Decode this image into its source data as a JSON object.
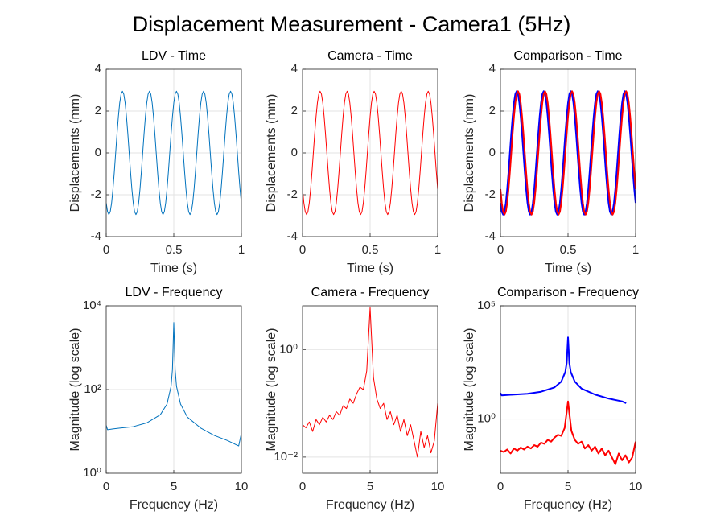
{
  "title": "Displacement Measurement - Camera1 (5Hz)",
  "chart_data": [
    {
      "type": "line",
      "title": "LDV - Time",
      "xlabel": "Time (s)",
      "ylabel": "Displacements (mm)",
      "xlim": [
        0,
        1
      ],
      "xticks": [
        0,
        0.5,
        1
      ],
      "ylim": [
        -4,
        4
      ],
      "yticks": [
        -4,
        -2,
        0,
        2,
        4
      ],
      "grid": true,
      "x": [
        0,
        0.01,
        0.02,
        0.03,
        0.04,
        0.05,
        0.06,
        0.07,
        0.08,
        0.09,
        0.1,
        0.11,
        0.12,
        0.13,
        0.14,
        0.15,
        0.16,
        0.17,
        0.18,
        0.19,
        0.2,
        0.21,
        0.22,
        0.23,
        0.24,
        0.25,
        0.26,
        0.27,
        0.28,
        0.29,
        0.3,
        0.31,
        0.32,
        0.33,
        0.34,
        0.35,
        0.36,
        0.37,
        0.38,
        0.39,
        0.4,
        0.41,
        0.42,
        0.43,
        0.44,
        0.45,
        0.46,
        0.47,
        0.48,
        0.49,
        0.5,
        0.51,
        0.52,
        0.53,
        0.54,
        0.55,
        0.56,
        0.57,
        0.58,
        0.59,
        0.6,
        0.61,
        0.62,
        0.63,
        0.64,
        0.65,
        0.66,
        0.67,
        0.68,
        0.69,
        0.7,
        0.71,
        0.72,
        0.73,
        0.74,
        0.75,
        0.76,
        0.77,
        0.78,
        0.79,
        0.8,
        0.81,
        0.82,
        0.83,
        0.84,
        0.85,
        0.86,
        0.87,
        0.88,
        0.89,
        0.9,
        0.91,
        0.92,
        0.93,
        0.94,
        0.95,
        0.96,
        0.97,
        0.98,
        0.99,
        1
      ],
      "series": [
        {
          "color": "#0072bd",
          "line_width": 1,
          "values": [
            -2.39,
            -2.81,
            -2.95,
            -2.81,
            -2.39,
            -1.73,
            -0.91,
            0,
            0.91,
            1.73,
            2.39,
            2.81,
            2.95,
            2.81,
            2.39,
            1.73,
            0.91,
            0,
            -0.91,
            -1.73,
            -2.39,
            -2.81,
            -2.95,
            -2.81,
            -2.39,
            -1.73,
            -0.91,
            0,
            0.91,
            1.73,
            2.39,
            2.81,
            2.95,
            2.81,
            2.39,
            1.73,
            0.91,
            0,
            -0.91,
            -1.73,
            -2.39,
            -2.81,
            -2.95,
            -2.81,
            -2.39,
            -1.73,
            -0.91,
            0,
            0.91,
            1.73,
            2.39,
            2.81,
            2.95,
            2.81,
            2.39,
            1.73,
            0.91,
            0,
            -0.91,
            -1.73,
            -2.39,
            -2.81,
            -2.95,
            -2.81,
            -2.39,
            -1.73,
            -0.91,
            0,
            0.91,
            1.73,
            2.39,
            2.81,
            2.95,
            2.81,
            2.39,
            1.73,
            0.91,
            0,
            -0.91,
            -1.73,
            -2.39,
            -2.81,
            -2.95,
            -2.81,
            -2.39,
            -1.73,
            -0.91,
            0,
            0.91,
            1.73,
            2.39,
            2.81,
            2.95,
            2.81,
            2.39,
            1.73,
            0.91,
            0,
            -0.91,
            -1.73,
            -2.39
          ]
        }
      ]
    },
    {
      "type": "line",
      "title": "Camera - Time",
      "xlabel": "Time (s)",
      "ylabel": "Displacements (mm)",
      "xlim": [
        0,
        1
      ],
      "xticks": [
        0,
        0.5,
        1
      ],
      "ylim": [
        -4,
        4
      ],
      "yticks": [
        -4,
        -2,
        0,
        2,
        4
      ],
      "grid": true,
      "x": [
        0,
        0.01,
        0.02,
        0.03,
        0.04,
        0.05,
        0.06,
        0.07,
        0.08,
        0.09,
        0.1,
        0.11,
        0.12,
        0.13,
        0.14,
        0.15,
        0.16,
        0.17,
        0.18,
        0.19,
        0.2,
        0.21,
        0.22,
        0.23,
        0.24,
        0.25,
        0.26,
        0.27,
        0.28,
        0.29,
        0.3,
        0.31,
        0.32,
        0.33,
        0.34,
        0.35,
        0.36,
        0.37,
        0.38,
        0.39,
        0.4,
        0.41,
        0.42,
        0.43,
        0.44,
        0.45,
        0.46,
        0.47,
        0.48,
        0.49,
        0.5,
        0.51,
        0.52,
        0.53,
        0.54,
        0.55,
        0.56,
        0.57,
        0.58,
        0.59,
        0.6,
        0.61,
        0.62,
        0.63,
        0.64,
        0.65,
        0.66,
        0.67,
        0.68,
        0.69,
        0.7,
        0.71,
        0.72,
        0.73,
        0.74,
        0.75,
        0.76,
        0.77,
        0.78,
        0.79,
        0.8,
        0.81,
        0.82,
        0.83,
        0.84,
        0.85,
        0.86,
        0.87,
        0.88,
        0.89,
        0.9,
        0.91,
        0.92,
        0.93,
        0.94,
        0.95,
        0.96,
        0.97,
        0.98,
        0.99,
        1
      ],
      "series": [
        {
          "color": "#ff0000",
          "line_width": 1,
          "values": [
            -1.73,
            -2.39,
            -2.81,
            -2.95,
            -2.81,
            -2.39,
            -1.73,
            -0.91,
            0,
            0.91,
            1.73,
            2.39,
            2.81,
            2.95,
            2.81,
            2.39,
            1.73,
            0.91,
            0,
            -0.91,
            -1.73,
            -2.39,
            -2.81,
            -2.95,
            -2.81,
            -2.39,
            -1.73,
            -0.91,
            0,
            0.91,
            1.73,
            2.39,
            2.81,
            2.95,
            2.81,
            2.39,
            1.73,
            0.91,
            0,
            -0.91,
            -1.73,
            -2.39,
            -2.81,
            -2.95,
            -2.81,
            -2.39,
            -1.73,
            -0.91,
            0,
            0.91,
            1.73,
            2.39,
            2.81,
            2.95,
            2.81,
            2.39,
            1.73,
            0.91,
            0,
            -0.91,
            -1.73,
            -2.39,
            -2.81,
            -2.95,
            -2.81,
            -2.39,
            -1.73,
            -0.91,
            0,
            0.91,
            1.73,
            2.39,
            2.81,
            2.95,
            2.81,
            2.39,
            1.73,
            0.91,
            0,
            -0.91,
            -1.73,
            -2.39,
            -2.81,
            -2.95,
            -2.81,
            -2.39,
            -1.73,
            -0.91,
            0,
            0.91,
            1.73,
            2.39,
            2.81,
            2.95,
            2.81,
            2.39,
            1.73,
            0.91,
            0,
            -0.91,
            -1.73
          ]
        }
      ]
    },
    {
      "type": "line",
      "title": "Comparison - Time",
      "xlabel": "Time (s)",
      "ylabel": "Displacements (mm)",
      "xlim": [
        0,
        1
      ],
      "xticks": [
        0,
        0.5,
        1
      ],
      "ylim": [
        -4,
        4
      ],
      "yticks": [
        -4,
        -2,
        0,
        2,
        4
      ],
      "grid": true,
      "x": [
        0,
        0.01,
        0.02,
        0.03,
        0.04,
        0.05,
        0.06,
        0.07,
        0.08,
        0.09,
        0.1,
        0.11,
        0.12,
        0.13,
        0.14,
        0.15,
        0.16,
        0.17,
        0.18,
        0.19,
        0.2,
        0.21,
        0.22,
        0.23,
        0.24,
        0.25,
        0.26,
        0.27,
        0.28,
        0.29,
        0.3,
        0.31,
        0.32,
        0.33,
        0.34,
        0.35,
        0.36,
        0.37,
        0.38,
        0.39,
        0.4,
        0.41,
        0.42,
        0.43,
        0.44,
        0.45,
        0.46,
        0.47,
        0.48,
        0.49,
        0.5,
        0.51,
        0.52,
        0.53,
        0.54,
        0.55,
        0.56,
        0.57,
        0.58,
        0.59,
        0.6,
        0.61,
        0.62,
        0.63,
        0.64,
        0.65,
        0.66,
        0.67,
        0.68,
        0.69,
        0.7,
        0.71,
        0.72,
        0.73,
        0.74,
        0.75,
        0.76,
        0.77,
        0.78,
        0.79,
        0.8,
        0.81,
        0.82,
        0.83,
        0.84,
        0.85,
        0.86,
        0.87,
        0.88,
        0.89,
        0.9,
        0.91,
        0.92,
        0.93,
        0.94,
        0.95,
        0.96,
        0.97,
        0.98,
        0.99,
        1
      ],
      "series": [
        {
          "color": "#0000ff",
          "line_width": 2,
          "values": [
            -2.39,
            -2.81,
            -2.95,
            -2.81,
            -2.39,
            -1.73,
            -0.91,
            0,
            0.91,
            1.73,
            2.39,
            2.81,
            2.95,
            2.81,
            2.39,
            1.73,
            0.91,
            0,
            -0.91,
            -1.73,
            -2.39,
            -2.81,
            -2.95,
            -2.81,
            -2.39,
            -1.73,
            -0.91,
            0,
            0.91,
            1.73,
            2.39,
            2.81,
            2.95,
            2.81,
            2.39,
            1.73,
            0.91,
            0,
            -0.91,
            -1.73,
            -2.39,
            -2.81,
            -2.95,
            -2.81,
            -2.39,
            -1.73,
            -0.91,
            0,
            0.91,
            1.73,
            2.39,
            2.81,
            2.95,
            2.81,
            2.39,
            1.73,
            0.91,
            0,
            -0.91,
            -1.73,
            -2.39,
            -2.81,
            -2.95,
            -2.81,
            -2.39,
            -1.73,
            -0.91,
            0,
            0.91,
            1.73,
            2.39,
            2.81,
            2.95,
            2.81,
            2.39,
            1.73,
            0.91,
            0,
            -0.91,
            -1.73,
            -2.39,
            -2.81,
            -2.95,
            -2.81,
            -2.39,
            -1.73,
            -0.91,
            0,
            0.91,
            1.73,
            2.39,
            2.81,
            2.95,
            2.81,
            2.39,
            1.73,
            0.91,
            0,
            -0.91,
            -1.73,
            -2.39
          ]
        },
        {
          "color": "#ff0000",
          "line_width": 2,
          "values": [
            -1.73,
            -2.39,
            -2.81,
            -2.95,
            -2.81,
            -2.39,
            -1.73,
            -0.91,
            0,
            0.91,
            1.73,
            2.39,
            2.81,
            2.95,
            2.81,
            2.39,
            1.73,
            0.91,
            0,
            -0.91,
            -1.73,
            -2.39,
            -2.81,
            -2.95,
            -2.81,
            -2.39,
            -1.73,
            -0.91,
            0,
            0.91,
            1.73,
            2.39,
            2.81,
            2.95,
            2.81,
            2.39,
            1.73,
            0.91,
            0,
            -0.91,
            -1.73,
            -2.39,
            -2.81,
            -2.95,
            -2.81,
            -2.39,
            -1.73,
            -0.91,
            0,
            0.91,
            1.73,
            2.39,
            2.81,
            2.95,
            2.81,
            2.39,
            1.73,
            0.91,
            0,
            -0.91,
            -1.73,
            -2.39,
            -2.81,
            -2.95,
            -2.81,
            -2.39,
            -1.73,
            -0.91,
            0,
            0.91,
            1.73,
            2.39,
            2.81,
            2.95,
            2.81,
            2.39,
            1.73,
            0.91,
            0,
            -0.91,
            -1.73,
            -2.39,
            -2.81,
            -2.95,
            -2.81,
            -2.39,
            -1.73,
            -0.91,
            0,
            0.91,
            1.73,
            2.39,
            2.81,
            2.95,
            2.81,
            2.39,
            1.73,
            0.91,
            0,
            -0.91,
            -1.73
          ]
        }
      ]
    },
    {
      "type": "line",
      "title": "LDV - Frequency",
      "xlabel": "Frequency (Hz)",
      "ylabel": "Magnitude (log scale)",
      "yscale": "log",
      "xlim": [
        0,
        10
      ],
      "xticks": [
        0,
        5,
        10
      ],
      "ylim": [
        1,
        10000
      ],
      "yticks": [
        {
          "value": 1,
          "label": "10⁰"
        },
        {
          "value": 100,
          "label": "10²"
        },
        {
          "value": 10000,
          "label": "10⁴"
        }
      ],
      "grid": true,
      "x": [
        0,
        0.1,
        0.5,
        1,
        2,
        3,
        4,
        4.5,
        4.8,
        4.9,
        5,
        5.1,
        5.2,
        5.5,
        6,
        7,
        8,
        9,
        9.5,
        9.8,
        10
      ],
      "series": [
        {
          "color": "#0072bd",
          "line_width": 1,
          "values": [
            14,
            11,
            11.5,
            12,
            13,
            16,
            25,
            45,
            120,
            300,
            4000,
            300,
            120,
            45,
            22,
            12,
            8,
            6,
            5,
            4.5,
            9
          ]
        }
      ]
    },
    {
      "type": "line",
      "title": "Camera - Frequency",
      "xlabel": "Frequency (Hz)",
      "ylabel": "Magnitude (log scale)",
      "yscale": "log",
      "xlim": [
        0,
        10
      ],
      "xticks": [
        0,
        5,
        10
      ],
      "ylim": [
        0.005,
        6.5
      ],
      "yticks": [
        {
          "value": 0.01,
          "label": "10⁻²"
        },
        {
          "value": 1,
          "label": "10⁰"
        }
      ],
      "grid": true,
      "x": [
        0,
        0.25,
        0.5,
        0.75,
        1,
        1.25,
        1.5,
        1.75,
        2,
        2.25,
        2.5,
        2.75,
        3,
        3.25,
        3.5,
        3.75,
        4,
        4.25,
        4.5,
        4.75,
        5,
        5.25,
        5.5,
        5.75,
        6,
        6.25,
        6.5,
        6.75,
        7,
        7.25,
        7.5,
        7.75,
        8,
        8.25,
        8.5,
        8.75,
        9,
        9.25,
        9.5,
        9.75,
        10
      ],
      "series": [
        {
          "color": "#ff0000",
          "line_width": 1,
          "values": [
            0.04,
            0.035,
            0.045,
            0.03,
            0.05,
            0.04,
            0.055,
            0.045,
            0.06,
            0.05,
            0.07,
            0.06,
            0.09,
            0.08,
            0.12,
            0.1,
            0.15,
            0.2,
            0.18,
            0.4,
            6,
            0.3,
            0.12,
            0.08,
            0.1,
            0.05,
            0.07,
            0.04,
            0.06,
            0.03,
            0.05,
            0.025,
            0.04,
            0.02,
            0.01,
            0.03,
            0.015,
            0.025,
            0.012,
            0.02,
            0.1
          ]
        }
      ]
    },
    {
      "type": "line",
      "title": "Comparison - Frequency",
      "xlabel": "Frequency (Hz)",
      "ylabel": "Magnitude (log scale)",
      "yscale": "log",
      "xlim": [
        0,
        10
      ],
      "xticks": [
        0,
        5,
        10
      ],
      "ylim": [
        0.004,
        100000
      ],
      "yticks": [
        {
          "value": 1,
          "label": "10⁰"
        },
        {
          "value": 100000,
          "label": "10⁵"
        }
      ],
      "grid": true,
      "series": [
        {
          "color": "#0000ff",
          "line_width": 2,
          "x": [
            0,
            0.1,
            0.5,
            1,
            2,
            3,
            4,
            4.5,
            4.8,
            4.9,
            5,
            5.1,
            5.2,
            5.5,
            6,
            7,
            8,
            9,
            9.3
          ],
          "values": [
            14,
            11,
            11.5,
            12,
            13,
            16,
            25,
            45,
            120,
            300,
            4000,
            300,
            120,
            45,
            22,
            12,
            8,
            6,
            5
          ]
        },
        {
          "color": "#ff0000",
          "line_width": 2,
          "x": [
            0,
            0.25,
            0.5,
            0.75,
            1,
            1.25,
            1.5,
            1.75,
            2,
            2.25,
            2.5,
            2.75,
            3,
            3.25,
            3.5,
            3.75,
            4,
            4.25,
            4.5,
            4.75,
            5,
            5.25,
            5.5,
            5.75,
            6,
            6.25,
            6.5,
            6.75,
            7,
            7.25,
            7.5,
            7.75,
            8,
            8.25,
            8.5,
            8.75,
            9,
            9.25,
            9.5,
            9.75,
            10
          ],
          "values": [
            0.04,
            0.035,
            0.045,
            0.03,
            0.05,
            0.04,
            0.055,
            0.045,
            0.06,
            0.05,
            0.07,
            0.06,
            0.09,
            0.08,
            0.12,
            0.1,
            0.15,
            0.2,
            0.18,
            0.4,
            6,
            0.3,
            0.12,
            0.08,
            0.1,
            0.05,
            0.07,
            0.04,
            0.06,
            0.03,
            0.05,
            0.025,
            0.04,
            0.02,
            0.01,
            0.03,
            0.015,
            0.025,
            0.012,
            0.02,
            0.1
          ]
        }
      ]
    }
  ]
}
